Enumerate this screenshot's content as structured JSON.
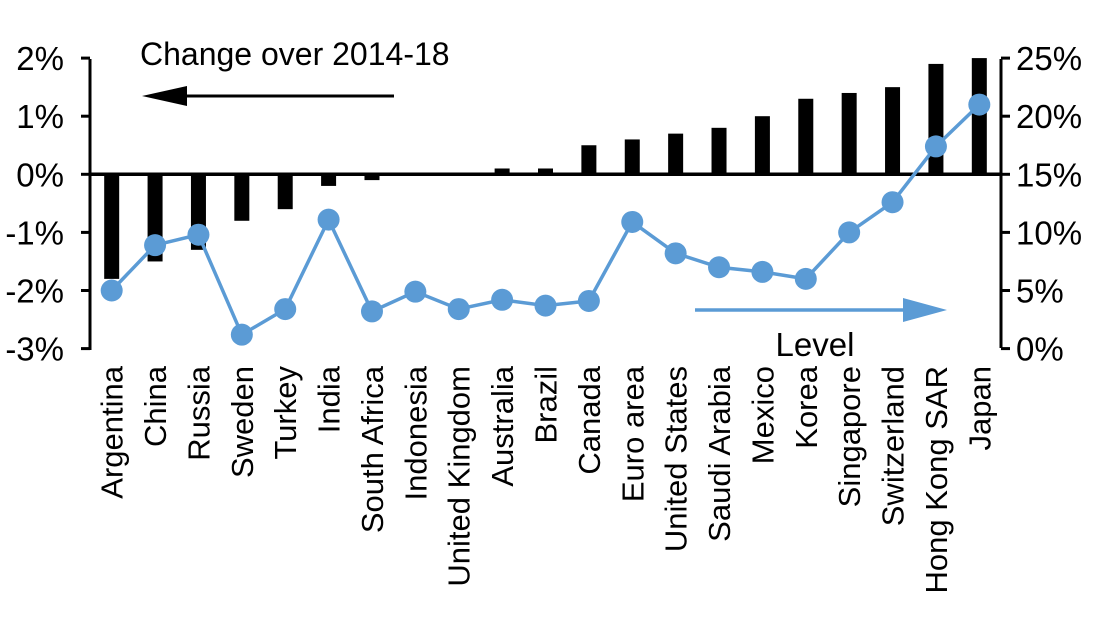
{
  "chart_data": {
    "type": "bar+line (dual axis)",
    "title": "",
    "categories": [
      "Argentina",
      "China",
      "Russia",
      "Sweden",
      "Turkey",
      "India",
      "South Africa",
      "Indonesia",
      "United Kingdom",
      "Australia",
      "Brazil",
      "Canada",
      "Euro area",
      "United States",
      "Saudi Arabia",
      "Mexico",
      "Korea",
      "Singapore",
      "Switzerland",
      "Hong Kong SAR",
      "Japan"
    ],
    "series": [
      {
        "name": "Change over 2014-18",
        "type": "bar",
        "axis": "left",
        "color": "#000000",
        "values": [
          -1.8,
          -1.5,
          -1.3,
          -0.8,
          -0.6,
          -0.2,
          -0.1,
          0,
          0,
          0.1,
          0.1,
          0.5,
          0.6,
          0.7,
          0.8,
          1.0,
          1.3,
          1.4,
          1.5,
          1.9,
          2.0
        ]
      },
      {
        "name": "Level",
        "type": "line",
        "axis": "right",
        "color": "#5B9BD5",
        "values": [
          5.0,
          8.9,
          9.8,
          1.2,
          3.4,
          11.1,
          3.2,
          4.9,
          3.4,
          4.2,
          3.7,
          4.1,
          10.9,
          8.2,
          7.0,
          6.6,
          6.0,
          10.0,
          12.6,
          17.4,
          21.0
        ]
      }
    ],
    "left_axis": {
      "unit": "%",
      "min": -3,
      "max": 2,
      "tick_values": [
        2,
        1,
        0,
        -1,
        -2,
        -3
      ],
      "tick_labels": [
        "2%",
        "1%",
        "0%",
        "-1%",
        "-2%",
        "-3%"
      ]
    },
    "right_axis": {
      "unit": "%",
      "min": 0,
      "max": 25,
      "tick_values": [
        25,
        20,
        15,
        10,
        5,
        0
      ],
      "tick_labels": [
        "25%",
        "20%",
        "15%",
        "10%",
        "5%",
        "0%"
      ]
    },
    "legend_position": "annotations with arrows (bar label top-left pointing left, line label bottom-right pointing right)",
    "grid": "off",
    "annotations": {
      "bar_arrow_direction": "left",
      "line_arrow_direction": "right"
    }
  }
}
